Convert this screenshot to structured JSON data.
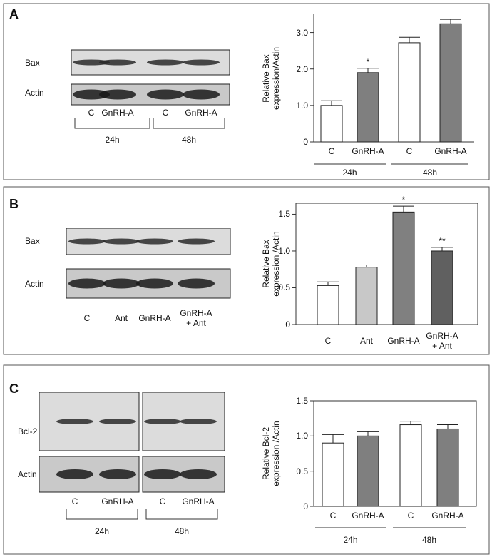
{
  "chart_data": [
    {
      "type": "bar",
      "ylabel": "Relative Bax expression/Actin",
      "categories": [
        "C",
        "GnRH-A",
        "C",
        "GnRH-A"
      ],
      "group_labels": [
        "24h",
        "48h"
      ],
      "values": [
        1.0,
        1.9,
        2.72,
        3.24
      ],
      "errors": [
        0.13,
        0.12,
        0.15,
        0.12
      ],
      "colors": [
        "#ffffff",
        "#7f7f7f",
        "#ffffff",
        "#7f7f7f"
      ],
      "annotations": [
        null,
        "*",
        null,
        null
      ],
      "ylim": [
        0,
        3.5
      ],
      "yticks": [
        0,
        {
          "value": 1,
          "label": "1.0"
        },
        {
          "value": 2,
          "label": "2.0"
        },
        {
          "value": 3,
          "label": "3.0"
        }
      ],
      "frame": false
    },
    {
      "type": "bar",
      "ylabel": "Relative Bax expression /Actin",
      "categories": [
        "C",
        "Ant",
        "GnRH-A",
        "GnRH-A + Ant"
      ],
      "values": [
        0.53,
        0.78,
        1.53,
        1.0
      ],
      "errors": [
        0.05,
        0.03,
        0.08,
        0.05
      ],
      "colors": [
        "#ffffff",
        "#c8c8c8",
        "#808080",
        "#606060"
      ],
      "annotations": [
        null,
        null,
        "*",
        "**"
      ],
      "ylim": [
        0,
        1.65
      ],
      "yticks": [
        0,
        0.5,
        {
          "value": 1,
          "label": "1.0"
        },
        1.5
      ],
      "frame": true
    },
    {
      "type": "bar",
      "ylabel": "Relative Bcl-2 expression /Actin",
      "categories": [
        "C",
        "GnRH-A",
        "C",
        "GnRH-A"
      ],
      "group_labels": [
        "24h",
        "48h"
      ],
      "values": [
        0.9,
        1.0,
        1.16,
        1.1
      ],
      "errors": [
        0.12,
        0.06,
        0.05,
        0.06
      ],
      "colors": [
        "#ffffff",
        "#7f7f7f",
        "#ffffff",
        "#7f7f7f"
      ],
      "annotations": [
        null,
        null,
        null,
        null
      ],
      "ylim": [
        0,
        1.5
      ],
      "yticks": [
        0,
        0.5,
        {
          "value": 1,
          "label": "1.0"
        },
        1.5
      ],
      "frame": true
    }
  ],
  "panels": [
    {
      "letter": "A",
      "blot_rows": [
        "Bax",
        "Actin"
      ],
      "lanes": [
        "C",
        "GnRH-A",
        "C",
        "GnRH-A"
      ],
      "groups": [
        "24h",
        "48h"
      ]
    },
    {
      "letter": "B",
      "blot_rows": [
        "Bax",
        "Actin"
      ],
      "lanes": [
        "C",
        "Ant",
        "GnRH-A",
        "GnRH-A + Ant"
      ]
    },
    {
      "letter": "C",
      "blot_rows": [
        "Bcl-2",
        "Actin"
      ],
      "lanes": [
        "C",
        "GnRH-A",
        "C",
        "GnRH-A"
      ],
      "groups": [
        "24h",
        "48h"
      ]
    }
  ]
}
